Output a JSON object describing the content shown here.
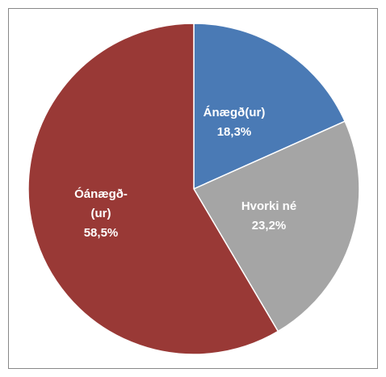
{
  "chart_data": {
    "type": "pie",
    "categories": [
      "Ánægð(ur)",
      "Hvorki né",
      "Óánægð-(ur)"
    ],
    "values": [
      18.3,
      23.2,
      58.5
    ],
    "value_labels": [
      "18,3%",
      "23,2%",
      "58,5%"
    ],
    "colors": [
      "#4a7ab5",
      "#a5a5a5",
      "#993936"
    ]
  }
}
